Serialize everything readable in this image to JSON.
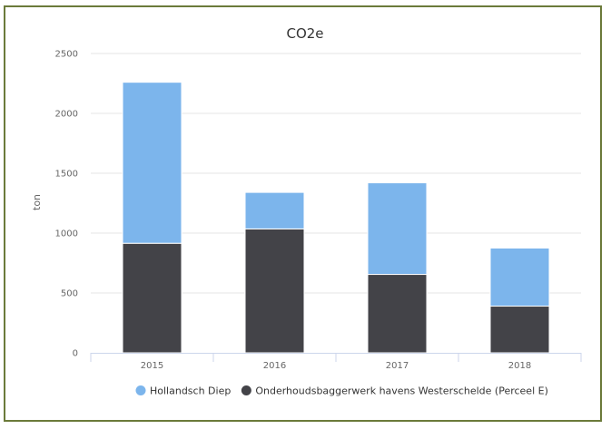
{
  "chart_data": {
    "type": "bar",
    "stacked": true,
    "title": "CO2e",
    "ylabel": "ton",
    "xlabel": "",
    "categories": [
      "2015",
      "2016",
      "2017",
      "2018"
    ],
    "ylim": [
      0,
      2500
    ],
    "yticks": [
      0,
      500,
      1000,
      1500,
      2000,
      2500
    ],
    "grid": true,
    "legend_position": "bottom",
    "series": [
      {
        "name": "Onderhoudsbaggerwerk havens Westerschelde (Perceel E)",
        "color": "#434348",
        "values": [
          915,
          1035,
          655,
          390
        ]
      },
      {
        "name": "Hollandsch Diep",
        "color": "#7cb5ec",
        "values": [
          1345,
          305,
          765,
          485
        ]
      }
    ]
  }
}
